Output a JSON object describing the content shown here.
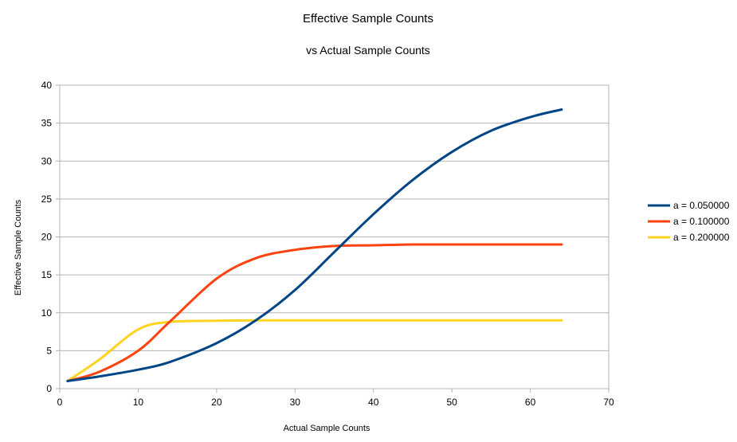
{
  "chart_data": {
    "type": "line",
    "title": "Effective Sample Counts",
    "subtitle": "vs Actual Sample Counts",
    "xlabel": "Actual Sample Counts",
    "ylabel": "Effective Sample Counts",
    "xlim": [
      0,
      70
    ],
    "ylim": [
      0,
      40
    ],
    "x_ticks": [
      0,
      10,
      20,
      30,
      40,
      50,
      60,
      70
    ],
    "y_ticks": [
      0,
      5,
      10,
      15,
      20,
      25,
      30,
      35,
      40
    ],
    "grid": "horizontal",
    "legend_position": "right",
    "x": [
      1,
      5,
      10,
      14,
      20,
      25,
      30,
      35,
      40,
      45,
      50,
      55,
      60,
      64
    ],
    "series": [
      {
        "name": "a = 0.050000",
        "color": "#004586",
        "values": [
          1.0,
          1.6,
          2.5,
          3.5,
          6.0,
          9.0,
          13.0,
          18.0,
          23.0,
          27.5,
          31.2,
          34.0,
          35.8,
          36.8
        ]
      },
      {
        "name": "a = 0.100000",
        "color": "#ff420e",
        "values": [
          1.0,
          2.2,
          5.0,
          8.8,
          14.5,
          17.2,
          18.3,
          18.8,
          18.9,
          19.0,
          19.0,
          19.0,
          19.0,
          19.0
        ]
      },
      {
        "name": "a = 0.200000",
        "color": "#ffd320",
        "values": [
          1.0,
          3.8,
          7.8,
          8.8,
          8.95,
          9.0,
          9.0,
          9.0,
          9.0,
          9.0,
          9.0,
          9.0,
          9.0,
          9.0
        ]
      }
    ]
  }
}
